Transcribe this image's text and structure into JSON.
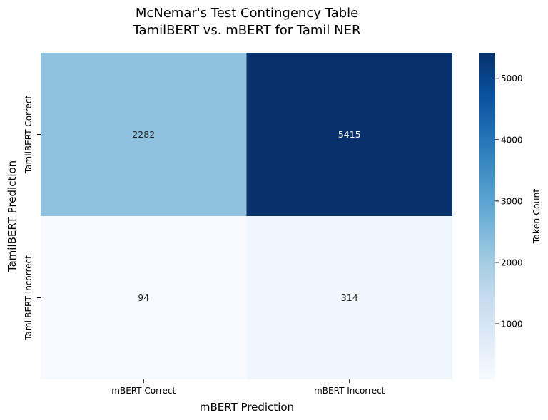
{
  "chart_data": {
    "type": "heatmap",
    "title_line1": "McNemar's Test Contingency Table",
    "title_line2": "TamilBERT vs. mBERT for Tamil NER",
    "xlabel": "mBERT Prediction",
    "ylabel": "TamilBERT Prediction",
    "x_categories": [
      "mBERT Correct",
      "mBERT Incorrect"
    ],
    "y_categories": [
      "TamilBERT Correct",
      "TamilBERT Incorrect"
    ],
    "values": [
      [
        2282,
        5415
      ],
      [
        94,
        314
      ]
    ],
    "colorbar": {
      "label": "Token Count",
      "vmin": 94,
      "vmax": 5415,
      "ticks": [
        1000,
        2000,
        3000,
        4000,
        5000
      ],
      "colormap": "Blues",
      "colors": [
        "#f7fbff",
        "#deebf7",
        "#c6dbef",
        "#9ecae1",
        "#6baed6",
        "#4292c6",
        "#2171b5",
        "#08519c",
        "#08306b"
      ]
    }
  }
}
